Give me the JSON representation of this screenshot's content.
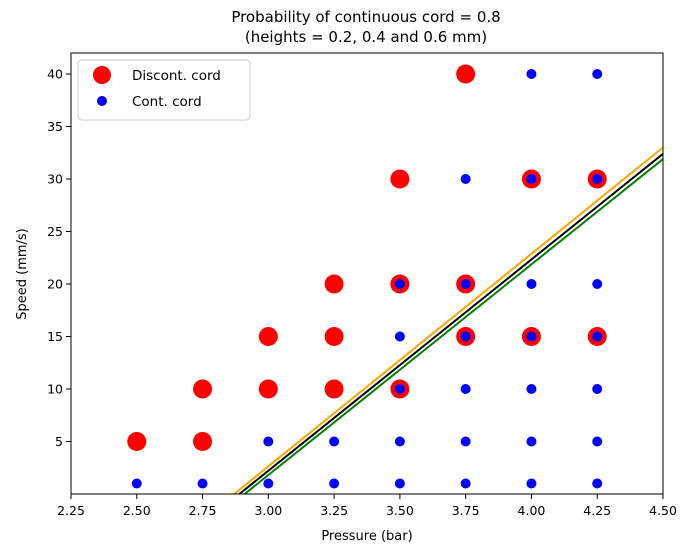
{
  "chart_data": {
    "type": "scatter",
    "title": "Probability of continuous cord = 0.8",
    "subtitle": "(heights = 0.2, 0.4 and 0.6 mm)",
    "xlabel": "Pressure (bar)",
    "ylabel": "Speed (mm/s)",
    "xlim": [
      2.25,
      4.5
    ],
    "ylim": [
      0,
      42
    ],
    "xticks": [
      "2.25",
      "2.50",
      "2.75",
      "3.00",
      "3.25",
      "3.50",
      "3.75",
      "4.00",
      "4.25",
      "4.50"
    ],
    "yticks": [
      "5",
      "10",
      "15",
      "20",
      "25",
      "30",
      "35",
      "40"
    ],
    "grid": false,
    "legend_position": "top-left",
    "series": [
      {
        "name": "Discont. cord",
        "color": "#ff0000",
        "marker": "large-circle",
        "points": [
          {
            "x": 2.5,
            "y": 5
          },
          {
            "x": 2.75,
            "y": 5
          },
          {
            "x": 2.75,
            "y": 10
          },
          {
            "x": 3.0,
            "y": 10
          },
          {
            "x": 3.0,
            "y": 15
          },
          {
            "x": 3.25,
            "y": 10
          },
          {
            "x": 3.25,
            "y": 15
          },
          {
            "x": 3.25,
            "y": 20
          },
          {
            "x": 3.5,
            "y": 10
          },
          {
            "x": 3.5,
            "y": 20
          },
          {
            "x": 3.5,
            "y": 30
          },
          {
            "x": 3.75,
            "y": 15
          },
          {
            "x": 3.75,
            "y": 20
          },
          {
            "x": 3.75,
            "y": 40
          },
          {
            "x": 4.0,
            "y": 15
          },
          {
            "x": 4.0,
            "y": 30
          },
          {
            "x": 4.25,
            "y": 15
          },
          {
            "x": 4.25,
            "y": 30
          }
        ]
      },
      {
        "name": "Cont. cord",
        "color": "#0000ff",
        "marker": "small-circle",
        "points": [
          {
            "x": 2.5,
            "y": 1
          },
          {
            "x": 2.75,
            "y": 1
          },
          {
            "x": 3.0,
            "y": 1
          },
          {
            "x": 3.0,
            "y": 5
          },
          {
            "x": 3.25,
            "y": 1
          },
          {
            "x": 3.25,
            "y": 5
          },
          {
            "x": 3.5,
            "y": 1
          },
          {
            "x": 3.5,
            "y": 5
          },
          {
            "x": 3.5,
            "y": 10
          },
          {
            "x": 3.5,
            "y": 15
          },
          {
            "x": 3.5,
            "y": 20
          },
          {
            "x": 3.75,
            "y": 1
          },
          {
            "x": 3.75,
            "y": 5
          },
          {
            "x": 3.75,
            "y": 10
          },
          {
            "x": 3.75,
            "y": 15
          },
          {
            "x": 3.75,
            "y": 20
          },
          {
            "x": 3.75,
            "y": 30
          },
          {
            "x": 4.0,
            "y": 1
          },
          {
            "x": 4.0,
            "y": 5
          },
          {
            "x": 4.0,
            "y": 10
          },
          {
            "x": 4.0,
            "y": 15
          },
          {
            "x": 4.0,
            "y": 20
          },
          {
            "x": 4.0,
            "y": 30
          },
          {
            "x": 4.0,
            "y": 40
          },
          {
            "x": 4.25,
            "y": 1
          },
          {
            "x": 4.25,
            "y": 5
          },
          {
            "x": 4.25,
            "y": 10
          },
          {
            "x": 4.25,
            "y": 15
          },
          {
            "x": 4.25,
            "y": 20
          },
          {
            "x": 4.25,
            "y": 30
          },
          {
            "x": 4.25,
            "y": 40
          }
        ]
      }
    ],
    "boundary_lines": [
      {
        "color": "#ffa500",
        "x": [
          2.87,
          4.5
        ],
        "y": [
          0,
          33.0
        ]
      },
      {
        "color": "#000000",
        "x": [
          2.89,
          4.5
        ],
        "y": [
          0,
          32.4
        ]
      },
      {
        "color": "#008000",
        "x": [
          2.91,
          4.5
        ],
        "y": [
          0,
          31.9
        ]
      }
    ]
  }
}
